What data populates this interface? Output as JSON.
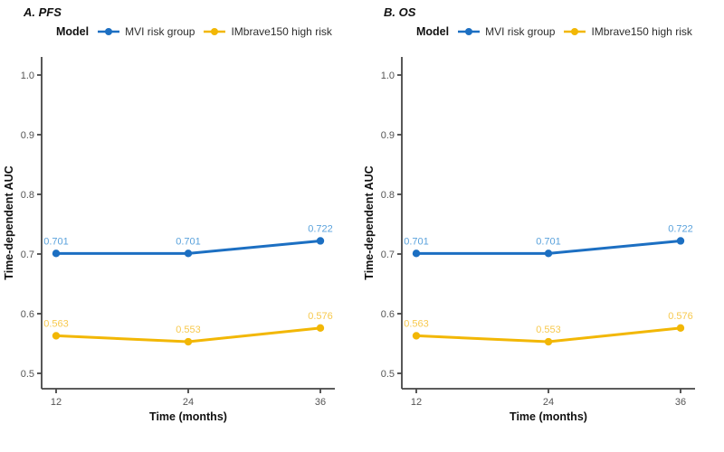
{
  "panels": [
    {
      "title": "A. PFS"
    },
    {
      "title": "B. OS"
    }
  ],
  "legend": {
    "title": "Model",
    "items": [
      {
        "label": "MVI risk group",
        "color": "#1c6fc2",
        "label_color": "#5aa2dc"
      },
      {
        "label": "IMbrave150 high risk",
        "color": "#f2b705",
        "label_color": "#f7c94e"
      }
    ]
  },
  "chart_data": [
    {
      "type": "line",
      "title": "A. PFS",
      "x": [
        12,
        24,
        36
      ],
      "xlabel": "Time (months)",
      "ylabel": "Time-dependent AUC",
      "ylim": [
        0.5,
        1.0
      ],
      "yticks": [
        0.5,
        0.6,
        0.7,
        0.8,
        0.9,
        1.0
      ],
      "grid": false,
      "legend_position": "top",
      "series": [
        {
          "name": "MVI risk group",
          "values": [
            0.701,
            0.701,
            0.722
          ],
          "labels": [
            "0.701",
            "0.701",
            "0.722"
          ]
        },
        {
          "name": "IMbrave150 high risk",
          "values": [
            0.563,
            0.553,
            0.576
          ],
          "labels": [
            "0.563",
            "0.553",
            "0.576"
          ]
        }
      ]
    },
    {
      "type": "line",
      "title": "B. OS",
      "x": [
        12,
        24,
        36
      ],
      "xlabel": "Time (months)",
      "ylabel": "Time-dependent AUC",
      "ylim": [
        0.5,
        1.0
      ],
      "yticks": [
        0.5,
        0.6,
        0.7,
        0.8,
        0.9,
        1.0
      ],
      "grid": false,
      "legend_position": "top",
      "series": [
        {
          "name": "MVI risk group",
          "values": [
            0.701,
            0.701,
            0.722
          ],
          "labels": [
            "0.701",
            "0.701",
            "0.722"
          ]
        },
        {
          "name": "IMbrave150 high risk",
          "values": [
            0.563,
            0.553,
            0.576
          ],
          "labels": [
            "0.563",
            "0.553",
            "0.576"
          ]
        }
      ]
    }
  ]
}
